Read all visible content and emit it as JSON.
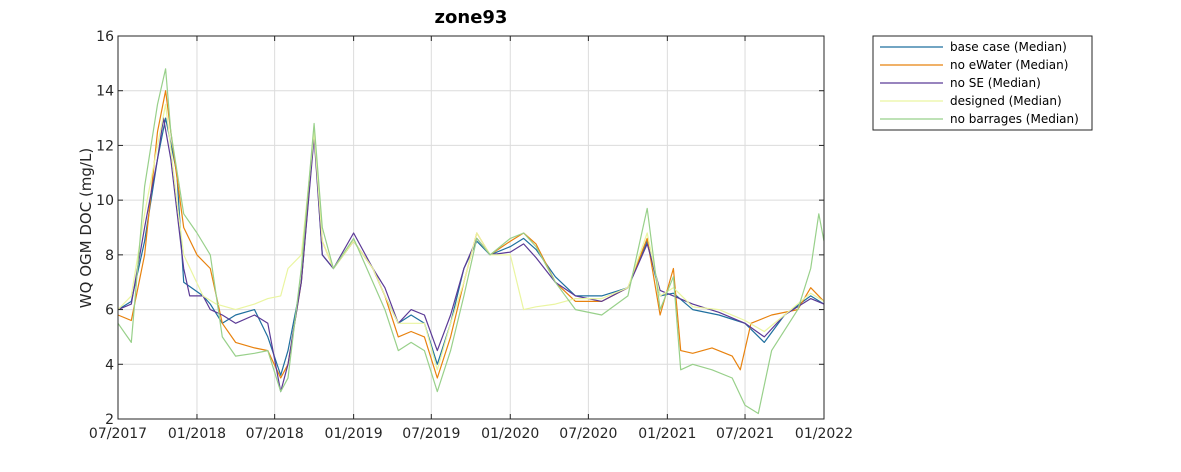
{
  "chart_data": {
    "type": "line",
    "title": "zone93",
    "xlabel": "",
    "ylabel": "WQ OGM DOC (mg/L)",
    "xlim": [
      "2017-07-01",
      "2022-01-01"
    ],
    "ylim": [
      2,
      16
    ],
    "grid": true,
    "legend_position": "outside-top-right",
    "xticks": [
      "07/2017",
      "01/2018",
      "07/2018",
      "01/2019",
      "07/2019",
      "01/2020",
      "07/2020",
      "01/2021",
      "07/2021",
      "01/2022"
    ],
    "xtick_dates": [
      "2017-07-01",
      "2018-01-01",
      "2018-07-01",
      "2019-01-01",
      "2019-07-01",
      "2020-01-01",
      "2020-07-01",
      "2021-01-01",
      "2021-07-01",
      "2022-01-01"
    ],
    "yticks": [
      2,
      4,
      6,
      8,
      10,
      12,
      14,
      16
    ],
    "series": [
      {
        "name": "base case (Median)",
        "color": "#1f6f9f",
        "points": [
          [
            "2017-07-01",
            6.0
          ],
          [
            "2017-08-01",
            6.3
          ],
          [
            "2017-09-01",
            8.5
          ],
          [
            "2017-10-01",
            11.5
          ],
          [
            "2017-10-20",
            13.0
          ],
          [
            "2017-11-15",
            11.0
          ],
          [
            "2017-12-01",
            7.0
          ],
          [
            "2018-01-15",
            6.5
          ],
          [
            "2018-02-01",
            6.2
          ],
          [
            "2018-03-01",
            5.5
          ],
          [
            "2018-04-01",
            5.8
          ],
          [
            "2018-05-15",
            6.0
          ],
          [
            "2018-06-15",
            5.0
          ],
          [
            "2018-07-15",
            3.6
          ],
          [
            "2018-08-01",
            4.5
          ],
          [
            "2018-09-01",
            7.0
          ],
          [
            "2018-10-01",
            12.5
          ],
          [
            "2018-10-20",
            8.0
          ],
          [
            "2018-11-15",
            7.5
          ],
          [
            "2019-01-01",
            8.5
          ],
          [
            "2019-02-15",
            7.5
          ],
          [
            "2019-03-15",
            6.5
          ],
          [
            "2019-04-15",
            5.5
          ],
          [
            "2019-05-15",
            5.8
          ],
          [
            "2019-06-15",
            5.5
          ],
          [
            "2019-07-15",
            4.0
          ],
          [
            "2019-08-15",
            5.5
          ],
          [
            "2019-09-15",
            7.5
          ],
          [
            "2019-10-15",
            8.5
          ],
          [
            "2019-11-15",
            8.0
          ],
          [
            "2020-01-01",
            8.3
          ],
          [
            "2020-02-01",
            8.6
          ],
          [
            "2020-03-01",
            8.2
          ],
          [
            "2020-04-15",
            7.2
          ],
          [
            "2020-06-01",
            6.5
          ],
          [
            "2020-08-01",
            6.5
          ],
          [
            "2020-10-01",
            6.8
          ],
          [
            "2020-11-15",
            8.5
          ],
          [
            "2020-12-15",
            6.5
          ],
          [
            "2021-01-15",
            6.6
          ],
          [
            "2021-03-01",
            6.0
          ],
          [
            "2021-05-01",
            5.8
          ],
          [
            "2021-07-01",
            5.5
          ],
          [
            "2021-08-15",
            4.8
          ],
          [
            "2021-10-01",
            5.8
          ],
          [
            "2021-12-01",
            6.5
          ],
          [
            "2022-01-01",
            6.2
          ]
        ]
      },
      {
        "name": "no eWater (Median)",
        "color": "#e8820e",
        "points": [
          [
            "2017-07-01",
            5.8
          ],
          [
            "2017-08-01",
            5.6
          ],
          [
            "2017-09-01",
            8.0
          ],
          [
            "2017-10-01",
            12.5
          ],
          [
            "2017-10-20",
            14.0
          ],
          [
            "2017-11-01",
            12.5
          ],
          [
            "2017-12-01",
            9.0
          ],
          [
            "2018-01-01",
            8.0
          ],
          [
            "2018-02-01",
            7.5
          ],
          [
            "2018-03-01",
            5.5
          ],
          [
            "2018-04-01",
            4.8
          ],
          [
            "2018-05-15",
            4.6
          ],
          [
            "2018-06-15",
            4.5
          ],
          [
            "2018-07-15",
            3.5
          ],
          [
            "2018-08-01",
            4.0
          ],
          [
            "2018-09-01",
            7.0
          ],
          [
            "2018-10-01",
            12.5
          ],
          [
            "2018-10-20",
            8.5
          ],
          [
            "2018-11-15",
            7.5
          ],
          [
            "2019-01-01",
            8.5
          ],
          [
            "2019-02-15",
            7.5
          ],
          [
            "2019-03-15",
            6.5
          ],
          [
            "2019-04-15",
            5.0
          ],
          [
            "2019-05-15",
            5.2
          ],
          [
            "2019-06-15",
            5.0
          ],
          [
            "2019-07-15",
            3.5
          ],
          [
            "2019-08-15",
            5.0
          ],
          [
            "2019-09-15",
            7.0
          ],
          [
            "2019-10-15",
            8.8
          ],
          [
            "2019-11-15",
            8.0
          ],
          [
            "2020-01-01",
            8.5
          ],
          [
            "2020-02-01",
            8.8
          ],
          [
            "2020-03-01",
            8.4
          ],
          [
            "2020-04-15",
            7.0
          ],
          [
            "2020-06-01",
            6.3
          ],
          [
            "2020-08-01",
            6.3
          ],
          [
            "2020-10-01",
            6.8
          ],
          [
            "2020-11-15",
            8.6
          ],
          [
            "2020-12-15",
            5.8
          ],
          [
            "2021-01-15",
            7.5
          ],
          [
            "2021-02-01",
            4.5
          ],
          [
            "2021-03-01",
            4.4
          ],
          [
            "2021-04-15",
            4.6
          ],
          [
            "2021-06-01",
            4.3
          ],
          [
            "2021-06-20",
            3.8
          ],
          [
            "2021-07-15",
            5.5
          ],
          [
            "2021-09-01",
            5.8
          ],
          [
            "2021-11-01",
            6.0
          ],
          [
            "2021-12-01",
            6.8
          ],
          [
            "2022-01-01",
            6.3
          ]
        ]
      },
      {
        "name": "no SE (Median)",
        "color": "#5b3a96",
        "points": [
          [
            "2017-07-01",
            6.0
          ],
          [
            "2017-08-01",
            6.2
          ],
          [
            "2017-09-01",
            9.0
          ],
          [
            "2017-10-01",
            11.5
          ],
          [
            "2017-10-15",
            13.0
          ],
          [
            "2017-11-01",
            11.5
          ],
          [
            "2017-12-01",
            7.5
          ],
          [
            "2017-12-15",
            6.5
          ],
          [
            "2018-01-15",
            6.5
          ],
          [
            "2018-02-01",
            6.0
          ],
          [
            "2018-03-01",
            5.8
          ],
          [
            "2018-04-01",
            5.5
          ],
          [
            "2018-05-15",
            5.8
          ],
          [
            "2018-06-15",
            5.5
          ],
          [
            "2018-07-15",
            3.0
          ],
          [
            "2018-08-01",
            4.0
          ],
          [
            "2018-09-01",
            7.0
          ],
          [
            "2018-10-01",
            12.3
          ],
          [
            "2018-10-20",
            8.0
          ],
          [
            "2018-11-15",
            7.5
          ],
          [
            "2019-01-01",
            8.8
          ],
          [
            "2019-02-15",
            7.5
          ],
          [
            "2019-03-15",
            6.8
          ],
          [
            "2019-04-15",
            5.5
          ],
          [
            "2019-05-15",
            6.0
          ],
          [
            "2019-06-15",
            5.8
          ],
          [
            "2019-07-15",
            4.5
          ],
          [
            "2019-08-15",
            5.8
          ],
          [
            "2019-09-15",
            7.5
          ],
          [
            "2019-10-15",
            8.6
          ],
          [
            "2019-11-15",
            8.0
          ],
          [
            "2020-01-01",
            8.1
          ],
          [
            "2020-02-01",
            8.4
          ],
          [
            "2020-03-01",
            7.9
          ],
          [
            "2020-04-15",
            7.0
          ],
          [
            "2020-06-01",
            6.5
          ],
          [
            "2020-08-01",
            6.3
          ],
          [
            "2020-10-01",
            6.8
          ],
          [
            "2020-11-15",
            8.4
          ],
          [
            "2020-12-15",
            6.7
          ],
          [
            "2021-01-15",
            6.5
          ],
          [
            "2021-03-01",
            6.2
          ],
          [
            "2021-05-01",
            5.9
          ],
          [
            "2021-07-01",
            5.5
          ],
          [
            "2021-08-15",
            5.0
          ],
          [
            "2021-10-01",
            5.8
          ],
          [
            "2021-12-01",
            6.4
          ],
          [
            "2022-01-01",
            6.2
          ]
        ]
      },
      {
        "name": "designed (Median)",
        "color": "#eaf5a0",
        "points": [
          [
            "2017-07-01",
            6.0
          ],
          [
            "2017-08-01",
            6.5
          ],
          [
            "2017-09-01",
            9.5
          ],
          [
            "2017-10-01",
            12.0
          ],
          [
            "2017-10-20",
            13.5
          ],
          [
            "2017-11-15",
            10.0
          ],
          [
            "2017-12-01",
            8.0
          ],
          [
            "2018-01-15",
            6.5
          ],
          [
            "2018-02-15",
            6.2
          ],
          [
            "2018-04-01",
            6.0
          ],
          [
            "2018-05-15",
            6.2
          ],
          [
            "2018-06-15",
            6.4
          ],
          [
            "2018-07-15",
            6.5
          ],
          [
            "2018-08-01",
            7.5
          ],
          [
            "2018-09-01",
            8.0
          ],
          [
            "2018-10-01",
            12.5
          ],
          [
            "2018-10-20",
            8.5
          ],
          [
            "2018-11-15",
            7.5
          ],
          [
            "2019-01-01",
            8.5
          ],
          [
            "2019-02-15",
            7.5
          ],
          [
            "2019-03-15",
            6.5
          ],
          [
            "2019-04-15",
            5.5
          ],
          [
            "2019-05-15",
            5.5
          ],
          [
            "2019-06-15",
            5.5
          ],
          [
            "2019-07-15",
            3.8
          ],
          [
            "2019-08-15",
            5.5
          ],
          [
            "2019-09-15",
            7.0
          ],
          [
            "2019-10-15",
            8.8
          ],
          [
            "2019-11-15",
            8.0
          ],
          [
            "2020-01-01",
            8.0
          ],
          [
            "2020-02-01",
            6.0
          ],
          [
            "2020-03-01",
            6.1
          ],
          [
            "2020-04-15",
            6.2
          ],
          [
            "2020-06-01",
            6.4
          ],
          [
            "2020-08-01",
            6.4
          ],
          [
            "2020-10-01",
            6.8
          ],
          [
            "2020-11-15",
            8.8
          ],
          [
            "2020-12-15",
            6.5
          ],
          [
            "2021-01-15",
            6.8
          ],
          [
            "2021-03-01",
            6.1
          ],
          [
            "2021-05-01",
            6.0
          ],
          [
            "2021-07-01",
            5.6
          ],
          [
            "2021-08-15",
            5.2
          ],
          [
            "2021-10-01",
            5.8
          ],
          [
            "2021-12-01",
            6.6
          ],
          [
            "2022-01-01",
            6.3
          ]
        ]
      },
      {
        "name": "no barrages (Median)",
        "color": "#98d08a",
        "points": [
          [
            "2017-07-01",
            5.5
          ],
          [
            "2017-08-01",
            4.8
          ],
          [
            "2017-09-01",
            10.5
          ],
          [
            "2017-10-01",
            13.5
          ],
          [
            "2017-10-20",
            14.8
          ],
          [
            "2017-11-01",
            12.5
          ],
          [
            "2017-12-01",
            9.5
          ],
          [
            "2018-01-01",
            8.8
          ],
          [
            "2018-02-01",
            8.0
          ],
          [
            "2018-03-01",
            5.0
          ],
          [
            "2018-04-01",
            4.3
          ],
          [
            "2018-05-15",
            4.4
          ],
          [
            "2018-06-15",
            4.5
          ],
          [
            "2018-07-15",
            3.0
          ],
          [
            "2018-08-01",
            3.5
          ],
          [
            "2018-09-01",
            7.5
          ],
          [
            "2018-10-01",
            12.8
          ],
          [
            "2018-10-20",
            9.0
          ],
          [
            "2018-11-15",
            7.5
          ],
          [
            "2019-01-01",
            8.6
          ],
          [
            "2019-02-15",
            7.0
          ],
          [
            "2019-03-15",
            6.0
          ],
          [
            "2019-04-15",
            4.5
          ],
          [
            "2019-05-15",
            4.8
          ],
          [
            "2019-06-15",
            4.5
          ],
          [
            "2019-07-15",
            3.0
          ],
          [
            "2019-08-15",
            4.5
          ],
          [
            "2019-09-15",
            6.5
          ],
          [
            "2019-10-15",
            8.6
          ],
          [
            "2019-11-15",
            8.0
          ],
          [
            "2020-01-01",
            8.6
          ],
          [
            "2020-02-01",
            8.8
          ],
          [
            "2020-03-01",
            8.3
          ],
          [
            "2020-04-15",
            7.0
          ],
          [
            "2020-06-01",
            6.0
          ],
          [
            "2020-08-01",
            5.8
          ],
          [
            "2020-10-01",
            6.5
          ],
          [
            "2020-11-15",
            9.7
          ],
          [
            "2020-12-15",
            6.0
          ],
          [
            "2021-01-15",
            7.2
          ],
          [
            "2021-02-01",
            3.8
          ],
          [
            "2021-03-01",
            4.0
          ],
          [
            "2021-04-15",
            3.8
          ],
          [
            "2021-06-01",
            3.5
          ],
          [
            "2021-07-01",
            2.5
          ],
          [
            "2021-08-01",
            2.2
          ],
          [
            "2021-09-01",
            4.5
          ],
          [
            "2021-11-01",
            6.0
          ],
          [
            "2021-12-01",
            7.5
          ],
          [
            "2021-12-20",
            9.5
          ],
          [
            "2022-01-01",
            8.5
          ]
        ]
      }
    ]
  }
}
